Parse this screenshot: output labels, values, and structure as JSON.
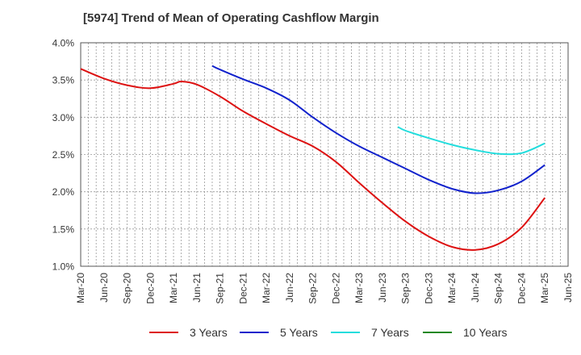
{
  "chart_data": {
    "type": "line",
    "title": "[5974]  Trend of Mean of Operating Cashflow Margin",
    "xlabel": "",
    "ylabel": "",
    "ylim": [
      1.0,
      4.0
    ],
    "yticks": [
      "1.0%",
      "1.5%",
      "2.0%",
      "2.5%",
      "3.0%",
      "3.5%",
      "4.0%"
    ],
    "x_tick_labels": [
      "Mar-20",
      "Jun-20",
      "Sep-20",
      "Dec-20",
      "Mar-21",
      "Jun-21",
      "Sep-21",
      "Dec-21",
      "Mar-22",
      "Jun-22",
      "Sep-22",
      "Dec-22",
      "Mar-23",
      "Jun-23",
      "Sep-23",
      "Dec-23",
      "Mar-24",
      "Jun-24",
      "Sep-24",
      "Dec-24",
      "Mar-25",
      "Jun-25"
    ],
    "x_months": [
      "Mar-20",
      "Apr-20",
      "May-20",
      "Jun-20",
      "Jul-20",
      "Aug-20",
      "Sep-20",
      "Oct-20",
      "Nov-20",
      "Dec-20",
      "Jan-21",
      "Feb-21",
      "Mar-21",
      "Apr-21",
      "May-21",
      "Jun-21",
      "Jul-21",
      "Aug-21",
      "Sep-21",
      "Oct-21",
      "Nov-21",
      "Dec-21",
      "Jan-22",
      "Feb-22",
      "Mar-22",
      "Apr-22",
      "May-22",
      "Jun-22",
      "Jul-22",
      "Aug-22",
      "Sep-22",
      "Oct-22",
      "Nov-22",
      "Dec-22",
      "Jan-23",
      "Feb-23",
      "Mar-23",
      "Apr-23",
      "May-23",
      "Jun-23",
      "Jul-23",
      "Aug-23",
      "Sep-23",
      "Oct-23",
      "Nov-23",
      "Dec-23",
      "Jan-24",
      "Feb-24",
      "Mar-24",
      "Apr-24",
      "May-24",
      "Jun-24",
      "Jul-24",
      "Aug-24",
      "Sep-24",
      "Oct-24",
      "Nov-24",
      "Dec-24",
      "Jan-25",
      "Feb-25",
      "Mar-25",
      "Apr-25",
      "May-25",
      "Jun-25"
    ],
    "series": [
      {
        "name": "3 Years",
        "color": "#dd1111",
        "points": [
          [
            "Mar-20",
            3.65
          ],
          [
            "Jun-20",
            3.52
          ],
          [
            "Sep-20",
            3.43
          ],
          [
            "Dec-20",
            3.39
          ],
          [
            "Mar-21",
            3.45
          ],
          [
            "Apr-21",
            3.48
          ],
          [
            "Jun-21",
            3.44
          ],
          [
            "Sep-21",
            3.28
          ],
          [
            "Dec-21",
            3.08
          ],
          [
            "Mar-22",
            2.91
          ],
          [
            "Jun-22",
            2.75
          ],
          [
            "Sep-22",
            2.61
          ],
          [
            "Dec-22",
            2.4
          ],
          [
            "Mar-23",
            2.12
          ],
          [
            "Jun-23",
            1.85
          ],
          [
            "Sep-23",
            1.6
          ],
          [
            "Dec-23",
            1.4
          ],
          [
            "Mar-24",
            1.26
          ],
          [
            "Jun-24",
            1.22
          ],
          [
            "Sep-24",
            1.3
          ],
          [
            "Dec-24",
            1.52
          ],
          [
            "Mar-25",
            1.92
          ]
        ]
      },
      {
        "name": "5 Years",
        "color": "#1122cc",
        "points": [
          [
            "Aug-21",
            3.69
          ],
          [
            "Sep-21",
            3.64
          ],
          [
            "Dec-21",
            3.51
          ],
          [
            "Mar-22",
            3.39
          ],
          [
            "Jun-22",
            3.23
          ],
          [
            "Sep-22",
            3.0
          ],
          [
            "Dec-22",
            2.79
          ],
          [
            "Mar-23",
            2.61
          ],
          [
            "Jun-23",
            2.46
          ],
          [
            "Sep-23",
            2.31
          ],
          [
            "Dec-23",
            2.16
          ],
          [
            "Mar-24",
            2.04
          ],
          [
            "Jun-24",
            1.98
          ],
          [
            "Sep-24",
            2.02
          ],
          [
            "Dec-24",
            2.14
          ],
          [
            "Mar-25",
            2.36
          ]
        ]
      },
      {
        "name": "7 Years",
        "color": "#22dddd",
        "points": [
          [
            "Aug-23",
            2.87
          ],
          [
            "Sep-23",
            2.82
          ],
          [
            "Dec-23",
            2.72
          ],
          [
            "Mar-24",
            2.63
          ],
          [
            "Jun-24",
            2.56
          ],
          [
            "Sep-24",
            2.51
          ],
          [
            "Dec-24",
            2.52
          ],
          [
            "Mar-25",
            2.65
          ]
        ]
      },
      {
        "name": "10 Years",
        "color": "#228822",
        "points": []
      }
    ],
    "grid": true,
    "legend_position": "bottom"
  }
}
